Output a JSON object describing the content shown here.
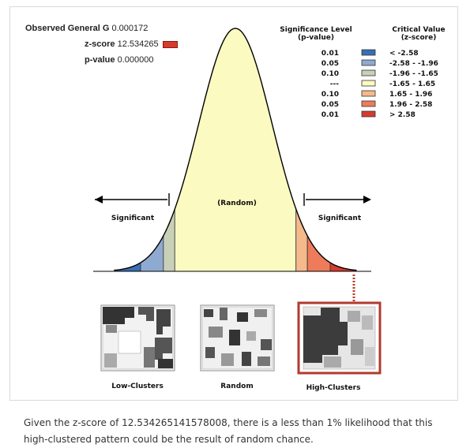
{
  "stats": {
    "observed_label": "Observed General G",
    "observed_value": "0.000172",
    "zscore_label": "z-score",
    "zscore_value": "12.534265",
    "pvalue_label": "p-value",
    "pvalue_value": "0.000000"
  },
  "legend": {
    "sig_header_1": "Significance Level",
    "sig_header_2": "(p-value)",
    "crit_header_1": "Critical Value",
    "crit_header_2": "(z-score)",
    "rows": [
      {
        "p": "0.01",
        "z": "< -2.58",
        "color": "#3a6fb5"
      },
      {
        "p": "0.05",
        "z": "-2.58 - -1.96",
        "color": "#8faad0"
      },
      {
        "p": "0.10",
        "z": "-1.96 - -1.65",
        "color": "#c8d0b8"
      },
      {
        "p": "---",
        "z": "-1.65 - 1.65",
        "color": "#fbfac0"
      },
      {
        "p": "0.10",
        "z": "1.65 - 1.96",
        "color": "#f6b98c"
      },
      {
        "p": "0.05",
        "z": "1.96 - 2.58",
        "color": "#ee7c5a"
      },
      {
        "p": "0.01",
        "z": "> 2.58",
        "color": "#d63b2e"
      }
    ]
  },
  "chart_labels": {
    "random": "(Random)",
    "significant_left": "Significant",
    "significant_right": "Significant"
  },
  "maps": [
    {
      "label": "Low-Clusters",
      "selected": false
    },
    {
      "label": "Random",
      "selected": false
    },
    {
      "label": "High-Clusters",
      "selected": true
    }
  ],
  "caption": "Given the z-score of 12.534265141578008, there is a less than 1% likelihood that this high-clustered pattern could be the result of random chance.",
  "chart_data": {
    "type": "area",
    "title": "",
    "xlabel": "",
    "ylabel": "",
    "x_range": [
      -3.3,
      3.3
    ],
    "bins": [
      {
        "from": -3.3,
        "to": -2.58,
        "color": "#3a6fb5"
      },
      {
        "from": -2.58,
        "to": -1.96,
        "color": "#8faad0"
      },
      {
        "from": -1.96,
        "to": -1.65,
        "color": "#c8d0b8"
      },
      {
        "from": -1.65,
        "to": 1.65,
        "color": "#fbfac0"
      },
      {
        "from": 1.65,
        "to": 1.96,
        "color": "#f6b98c"
      },
      {
        "from": 1.96,
        "to": 2.58,
        "color": "#ee7c5a"
      },
      {
        "from": 2.58,
        "to": 3.3,
        "color": "#d63b2e"
      }
    ],
    "zscore": 12.534265,
    "zscore_marker_bin": "> 2.58"
  }
}
